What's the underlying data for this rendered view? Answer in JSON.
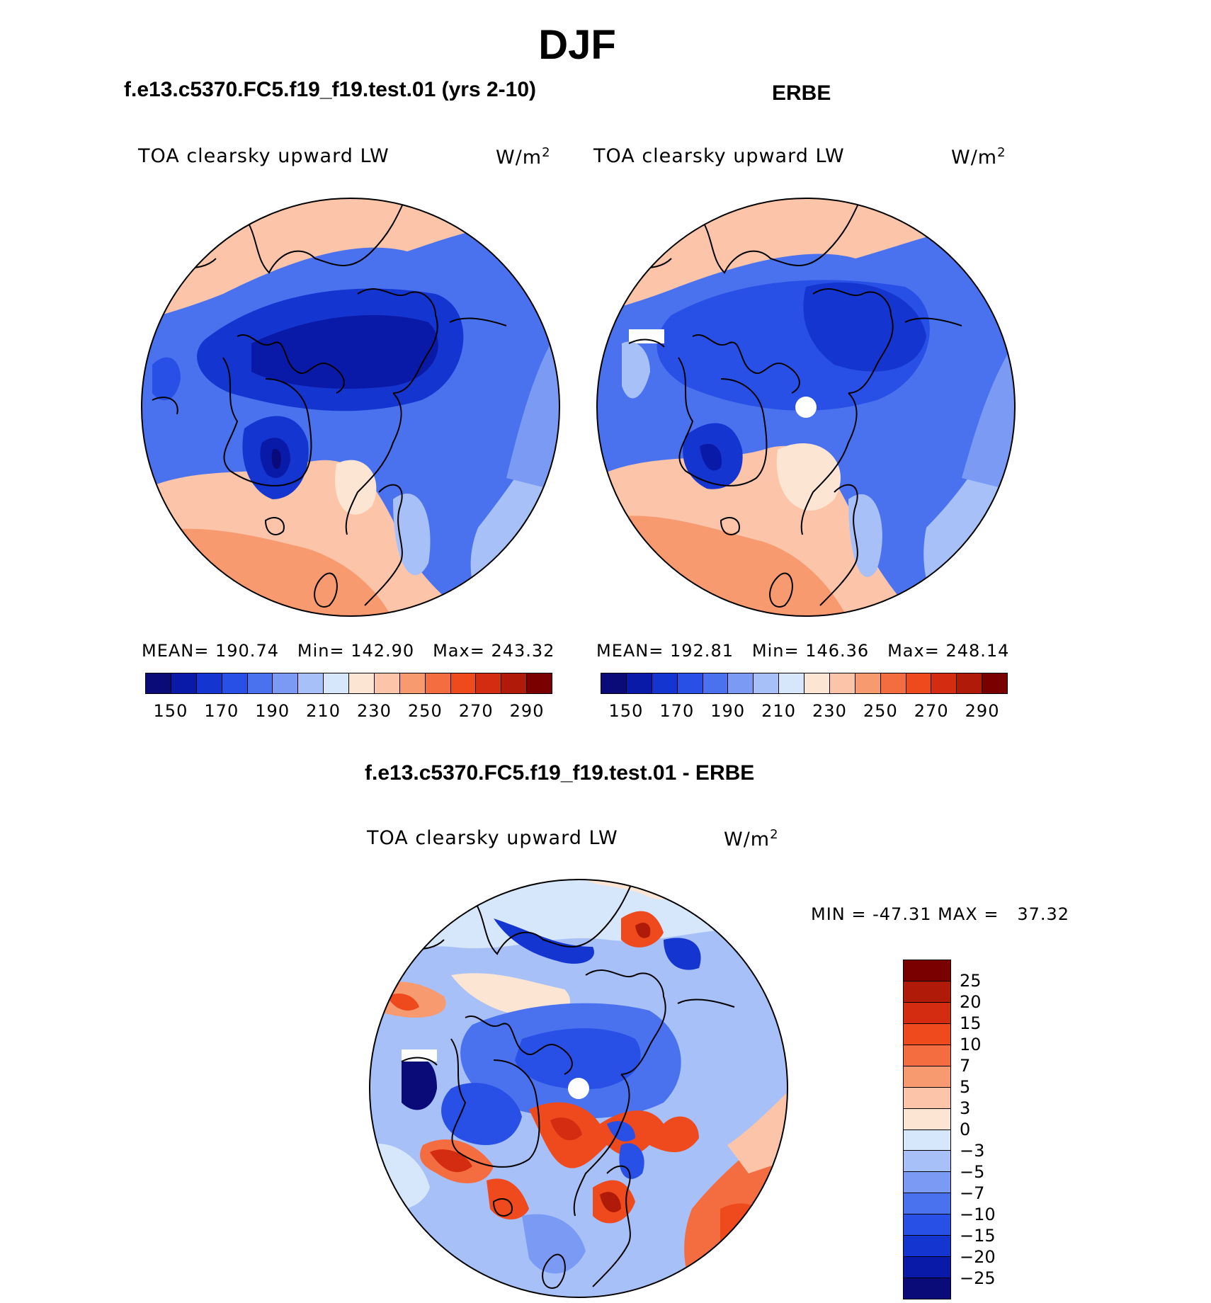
{
  "figure": {
    "title": "DJF"
  },
  "panels": {
    "model": {
      "heading": "f.e13.c5370.FC5.f19_f19.test.01 (yrs 2-10)",
      "variable": "TOA clearsky upward LW",
      "unit_base": "W/m",
      "unit_exp": "2",
      "mean_label": "MEAN=",
      "mean": "190.74",
      "min_label": "Min=",
      "min": "142.90",
      "max_label": "Max=",
      "max": "243.32"
    },
    "obs": {
      "heading": "ERBE",
      "variable": "TOA clearsky upward LW",
      "unit_base": "W/m",
      "unit_exp": "2",
      "mean_label": "MEAN=",
      "mean": "192.81",
      "min_label": "Min=",
      "min": "146.36",
      "max_label": "Max=",
      "max": "248.14"
    },
    "diff": {
      "heading": "f.e13.c5370.FC5.f19_f19.test.01 - ERBE",
      "variable": "TOA clearsky upward LW",
      "unit_base": "W/m",
      "unit_exp": "2",
      "min_label": "MIN =",
      "min": "-47.31",
      "max_label": "MAX =",
      "max": "37.32"
    }
  },
  "colorbar_abs": {
    "tick_labels": [
      "150",
      "170",
      "190",
      "210",
      "230",
      "250",
      "270",
      "290"
    ],
    "colors": [
      "#0a0a78",
      "#0a1aa8",
      "#1535d0",
      "#2850e6",
      "#4a72ee",
      "#7a9af4",
      "#a8c0f8",
      "#d6e6fb",
      "#fde5d3",
      "#fcc4a8",
      "#f89a70",
      "#f46d40",
      "#ee4a1e",
      "#d42c10",
      "#b01a08",
      "#7a0000"
    ]
  },
  "colorbar_diff": {
    "levels": [
      "25",
      "20",
      "15",
      "10",
      "7",
      "5",
      "3",
      "0",
      "-3",
      "-5",
      "-7",
      "-10",
      "-15",
      "-20",
      "-25"
    ],
    "colors": [
      "#7a0000",
      "#b01a08",
      "#d42c10",
      "#ee4a1e",
      "#f46d40",
      "#f89a70",
      "#fcc4a8",
      "#fde5d3",
      "#d6e6fb",
      "#a8c0f8",
      "#7a9af4",
      "#4a72ee",
      "#2850e6",
      "#1535d0",
      "#0a1aa8",
      "#0a0a78"
    ]
  }
}
